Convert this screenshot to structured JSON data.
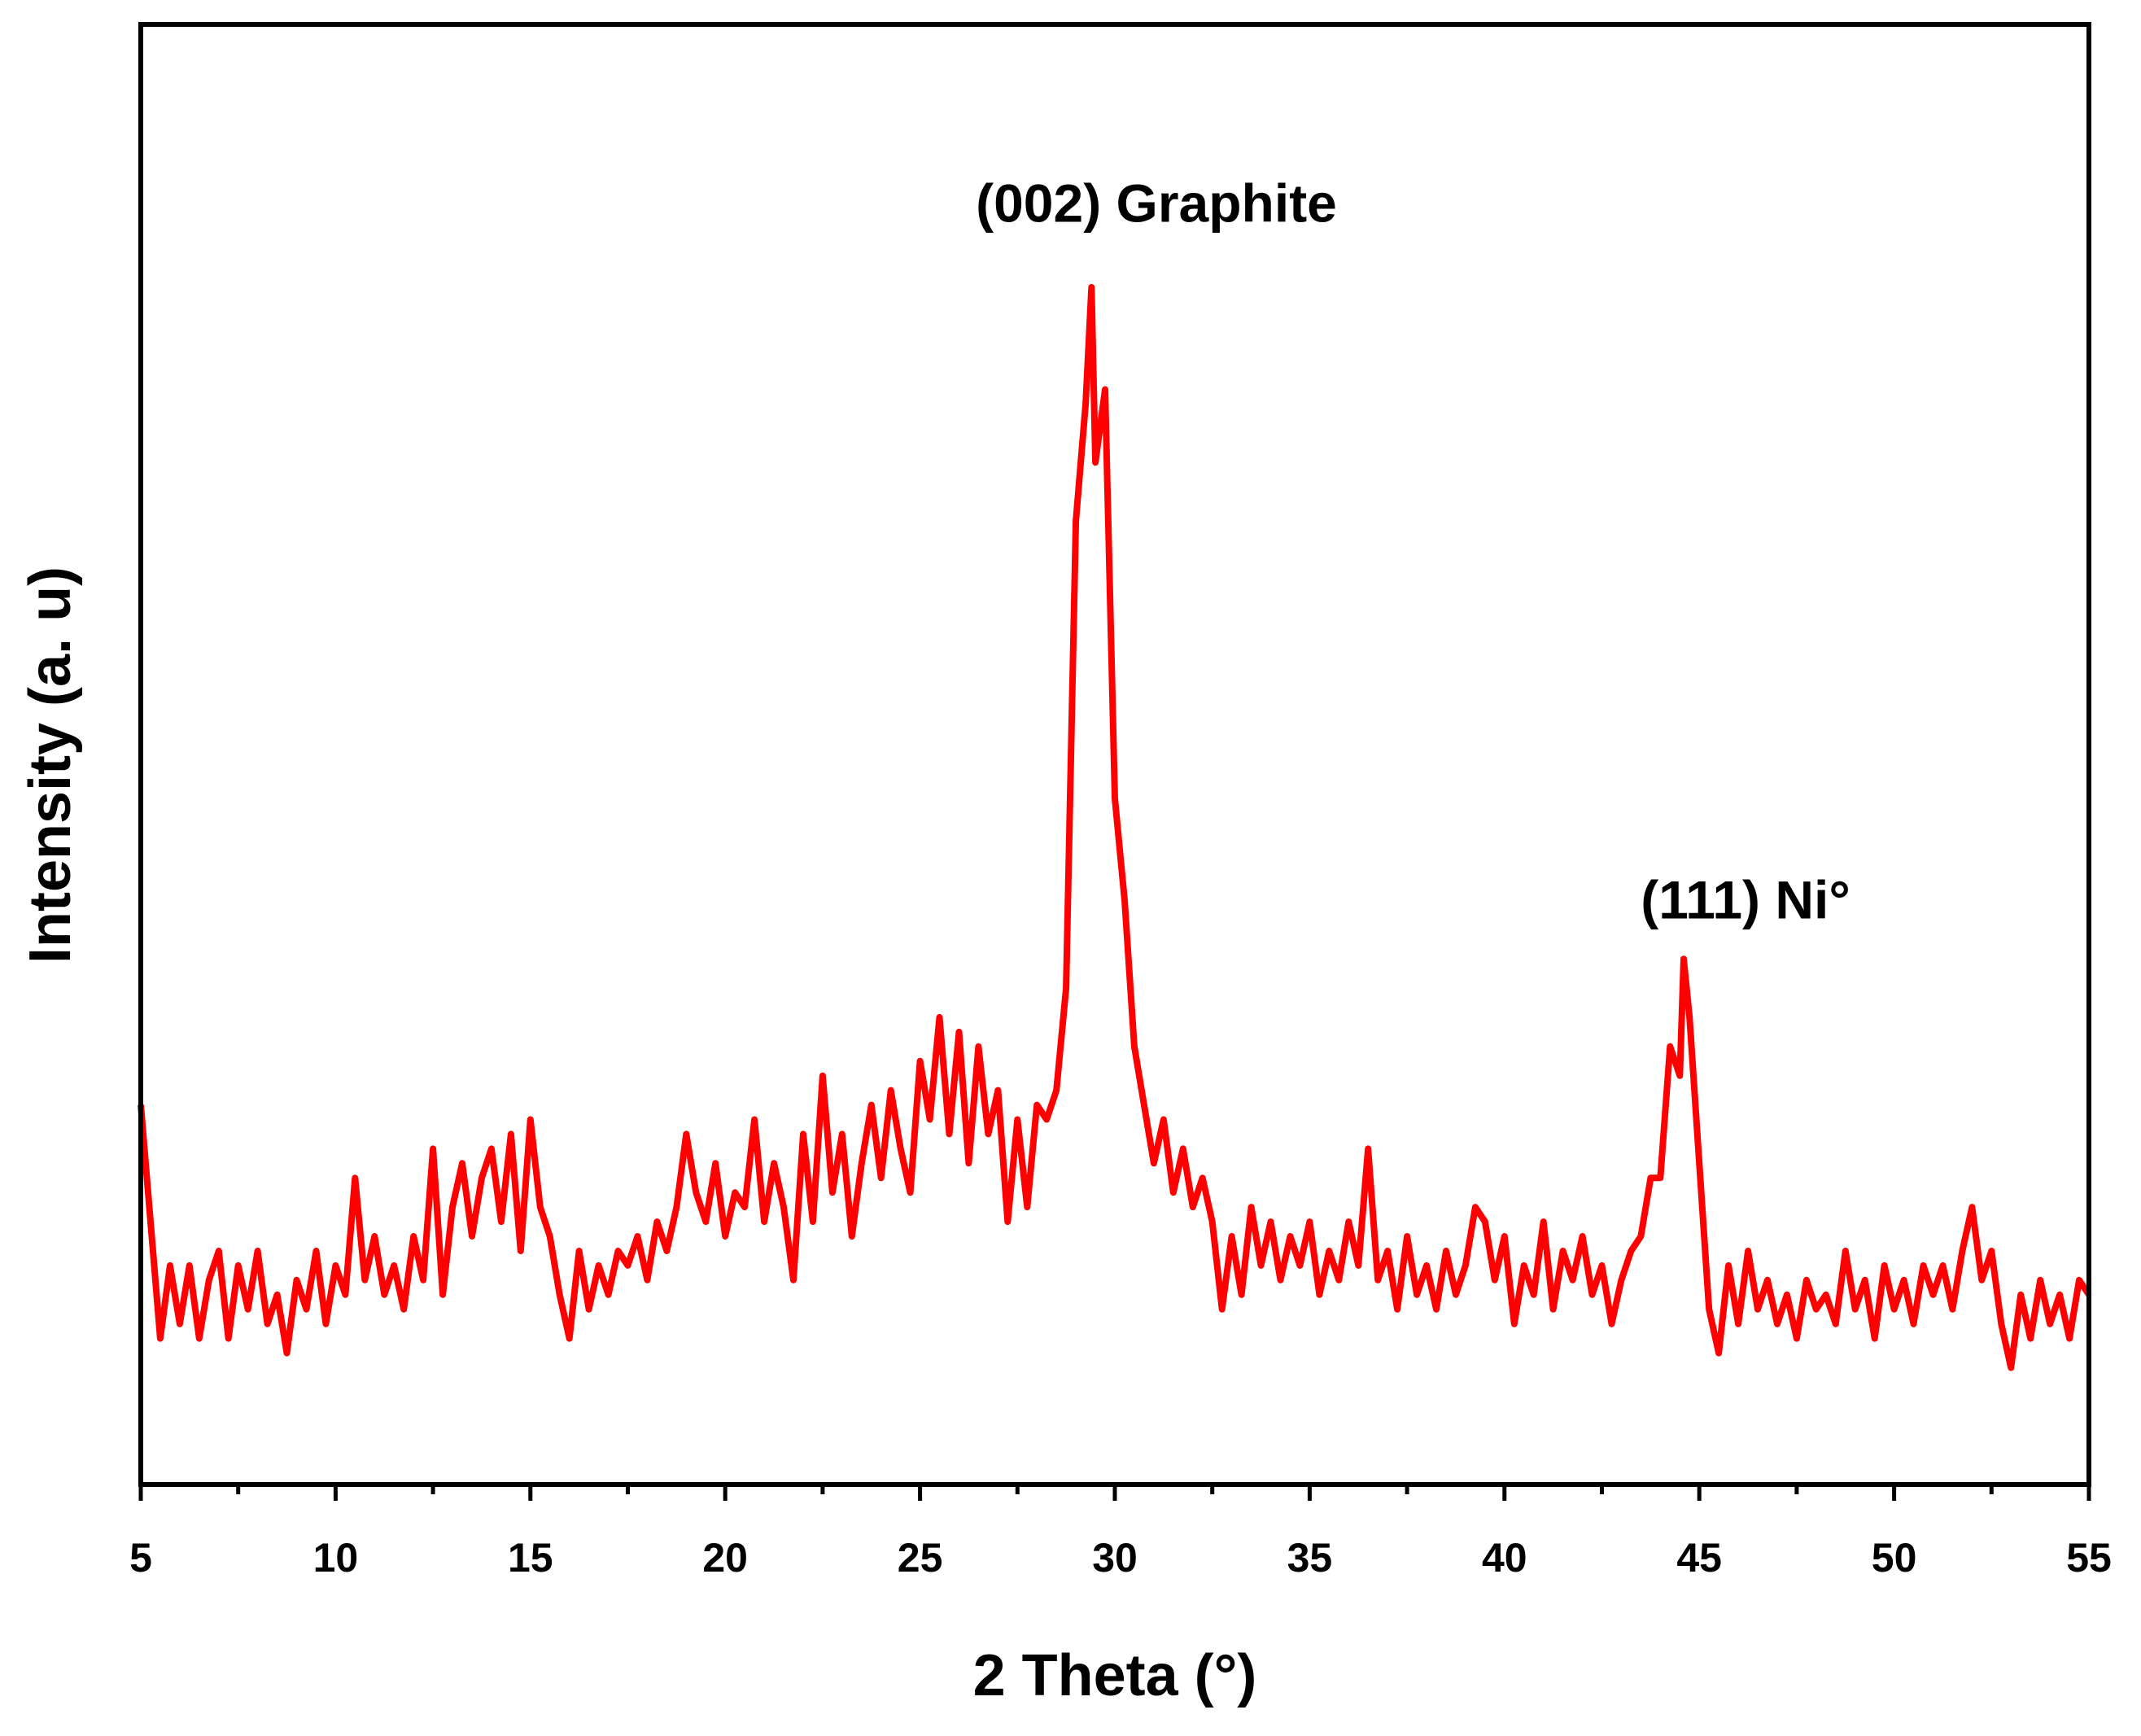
{
  "chart_data": {
    "type": "line",
    "x_label": "2 Theta (°)",
    "y_label": "Intensity (a. u)",
    "annotations": [
      "(002) Graphite",
      "(111) Ni°"
    ],
    "xlim": [
      5,
      55
    ],
    "xticks": [
      5,
      10,
      15,
      20,
      25,
      30,
      35,
      40,
      45,
      50,
      55
    ],
    "ylim": [
      0,
      100
    ],
    "x": [
      5,
      5.25,
      5.5,
      5.75,
      6,
      6.25,
      6.5,
      6.75,
      7,
      7.25,
      7.5,
      7.75,
      8,
      8.25,
      8.5,
      8.75,
      9,
      9.25,
      9.5,
      9.75,
      10,
      10.25,
      10.5,
      10.75,
      11,
      11.25,
      11.5,
      11.75,
      12,
      12.25,
      12.5,
      12.75,
      13,
      13.25,
      13.5,
      13.75,
      14,
      14.25,
      14.5,
      14.75,
      15,
      15.25,
      15.5,
      15.75,
      16,
      16.25,
      16.5,
      16.75,
      17,
      17.25,
      17.5,
      17.75,
      18,
      18.25,
      18.5,
      18.75,
      19,
      19.25,
      19.5,
      19.75,
      20,
      20.25,
      20.5,
      20.75,
      21,
      21.25,
      21.5,
      21.75,
      22,
      22.25,
      22.5,
      22.75,
      23,
      23.25,
      23.5,
      23.75,
      24,
      24.25,
      24.5,
      24.75,
      25,
      25.25,
      25.5,
      25.75,
      26,
      26.25,
      26.5,
      26.75,
      27,
      27.25,
      27.5,
      27.75,
      28,
      28.25,
      28.5,
      28.75,
      29,
      29.25,
      29.4,
      29.5,
      29.75,
      30,
      30.25,
      30.5,
      30.75,
      31,
      31.25,
      31.5,
      31.75,
      32,
      32.25,
      32.5,
      32.75,
      33,
      33.25,
      33.5,
      33.75,
      34,
      34.25,
      34.5,
      34.75,
      35,
      35.25,
      35.5,
      35.75,
      36,
      36.25,
      36.5,
      36.75,
      37,
      37.25,
      37.5,
      37.75,
      38,
      38.25,
      38.5,
      38.75,
      39,
      39.25,
      39.5,
      39.75,
      40,
      40.25,
      40.5,
      40.75,
      41,
      41.25,
      41.5,
      41.75,
      42,
      42.25,
      42.5,
      42.75,
      43,
      43.25,
      43.5,
      43.75,
      44,
      44.25,
      44.5,
      44.6,
      44.75,
      45,
      45.25,
      45.5,
      45.75,
      46,
      46.25,
      46.5,
      46.75,
      47,
      47.25,
      47.5,
      47.75,
      48,
      48.25,
      48.5,
      48.75,
      49,
      49.25,
      49.5,
      49.75,
      50,
      50.25,
      50.5,
      50.75,
      51,
      51.25,
      51.5,
      51.75,
      52,
      52.25,
      52.5,
      52.75,
      53,
      53.25,
      53.5,
      53.75,
      54,
      54.25,
      54.5,
      54.75,
      55
    ],
    "series": [
      {
        "color": "#ff0000",
        "values": [
          26,
          18,
          10,
          15,
          11,
          15,
          10,
          14,
          16,
          10,
          15,
          12,
          16,
          11,
          13,
          9,
          14,
          12,
          16,
          11,
          15,
          13,
          21,
          14,
          17,
          13,
          15,
          12,
          17,
          14,
          23,
          13,
          19,
          22,
          17,
          21,
          23,
          18,
          24,
          16,
          25,
          19,
          17,
          13,
          10,
          16,
          12,
          15,
          13,
          16,
          15,
          17,
          14,
          18,
          16,
          19,
          24,
          20,
          18,
          22,
          17,
          20,
          19,
          25,
          18,
          22,
          19,
          14,
          24,
          18,
          28,
          20,
          24,
          17,
          22,
          26,
          21,
          27,
          23,
          20,
          29,
          25,
          32,
          24,
          31,
          22,
          30,
          24,
          27,
          18,
          25,
          19,
          26,
          25,
          27,
          34,
          66,
          74,
          82,
          70,
          75,
          47,
          40,
          30,
          26,
          22,
          25,
          20,
          23,
          19,
          21,
          18,
          12,
          17,
          13,
          19,
          15,
          18,
          14,
          17,
          15,
          18,
          13,
          16,
          14,
          18,
          15,
          23,
          14,
          16,
          12,
          17,
          13,
          15,
          12,
          16,
          13,
          15,
          19,
          18,
          14,
          17,
          11,
          15,
          13,
          18,
          12,
          16,
          14,
          17,
          13,
          15,
          11,
          14,
          16,
          17,
          21,
          21,
          30,
          28,
          36,
          32,
          22,
          12,
          9,
          15,
          11,
          16,
          12,
          14,
          11,
          13,
          10,
          14,
          12,
          13,
          11,
          16,
          12,
          14,
          10,
          15,
          12,
          14,
          11,
          15,
          13,
          15,
          12,
          16,
          19,
          14,
          16,
          11,
          8,
          13,
          10,
          14,
          11,
          13,
          10,
          14,
          13
        ]
      }
    ]
  }
}
